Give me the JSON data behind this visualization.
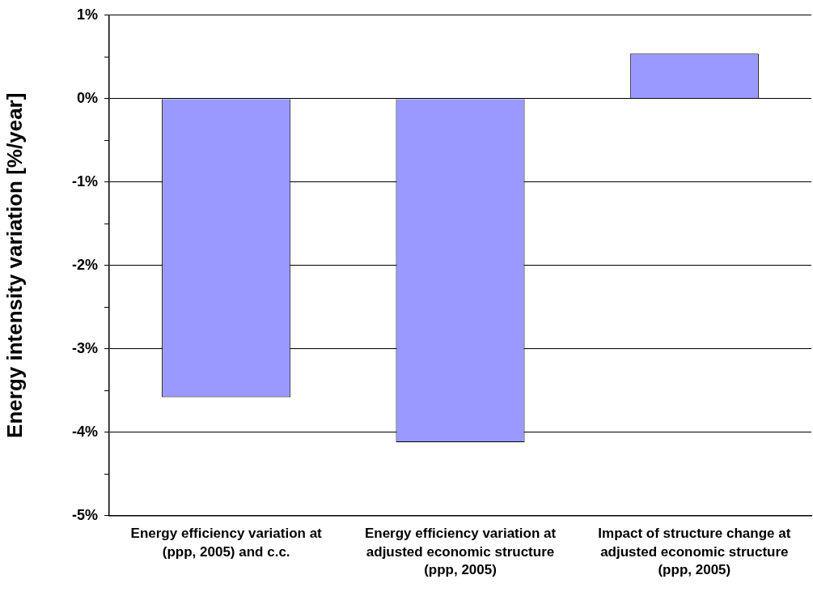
{
  "chart_data": {
    "type": "bar",
    "ylabel": "Energy intensity variation [%/year]",
    "categories": [
      "Energy efficiency variation at (ppp, 2005) and c.c.",
      "Energy efficiency variation at adjusted economic structure (ppp, 2005)",
      "Impact of structure change at adjusted economic structure (ppp, 2005)"
    ],
    "values": [
      -3.58,
      -4.12,
      0.54
    ],
    "color": "#9999ff",
    "ylim": [
      -5,
      1
    ],
    "yticks": [
      {
        "value": -5,
        "label": "-5%"
      },
      {
        "value": -4.5,
        "label": null
      },
      {
        "value": -4,
        "label": "-4%"
      },
      {
        "value": -3.5,
        "label": null
      },
      {
        "value": -3,
        "label": "-3%"
      },
      {
        "value": -2.5,
        "label": null
      },
      {
        "value": -2,
        "label": "-2%"
      },
      {
        "value": -1.5,
        "label": null
      },
      {
        "value": -1,
        "label": "-1%"
      },
      {
        "value": -0.5,
        "label": null
      },
      {
        "value": 0,
        "label": "0%"
      },
      {
        "value": 0.5,
        "label": null
      },
      {
        "value": 1,
        "label": "1%"
      }
    ],
    "grid": "y",
    "legend": false
  }
}
